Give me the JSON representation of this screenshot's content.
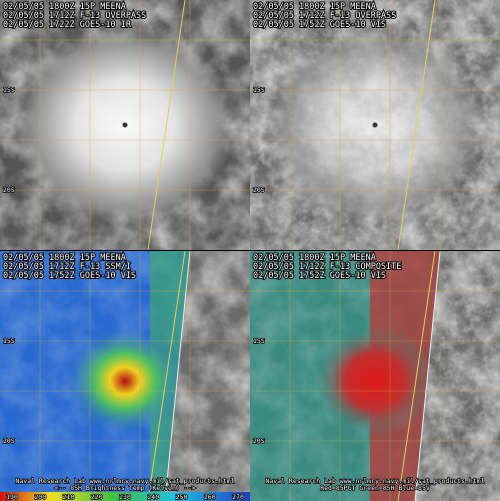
{
  "panels": [
    {
      "header": [
        "02/05/05 1800Z 15P MEENA",
        "02/05/05 1712Z F-13 OVERPASS",
        "02/05/05 1722Z GOES-10 IR"
      ],
      "lat_labels": [
        "15S",
        "20S"
      ],
      "footer": []
    },
    {
      "header": [
        "02/05/05 1800Z 15P MEENA",
        "02/05/05 1712Z F-13 OVERPASS",
        "02/05/05 1752Z GOES-10 VIS"
      ],
      "lat_labels": [
        "15S",
        "20S"
      ],
      "footer": []
    },
    {
      "header": [
        "02/05/05 1800Z 15P MEENA",
        "02/05/05 1712Z F-13 SSM/I",
        "02/05/05 1752Z GOES-10 VIS"
      ],
      "lat_labels": [
        "15S",
        "20S"
      ],
      "footer": [
        "Naval Research Lab  www.nrlmry.navy.mil/sat_products.html",
        "<--  85H Brightness Temp (Kelvin)  -->"
      ]
    },
    {
      "header": [
        "02/05/05 1800Z 15P MEENA",
        "02/05/05 1712Z F-13 COMPOSITE",
        "02/05/05 1752Z GOES-10 VIS"
      ],
      "lat_labels": [
        "15S",
        "20S"
      ],
      "footer": [
        "Naval Research Lab  www.nrlmry.navy.mil/sat_products.html",
        "Red=85PCT  Green=85H  Blue=85V"
      ]
    }
  ],
  "colorbar": {
    "labels": [
      "190",
      "200",
      "210",
      "220",
      "230",
      "240",
      "250",
      "260",
      "270"
    ]
  }
}
